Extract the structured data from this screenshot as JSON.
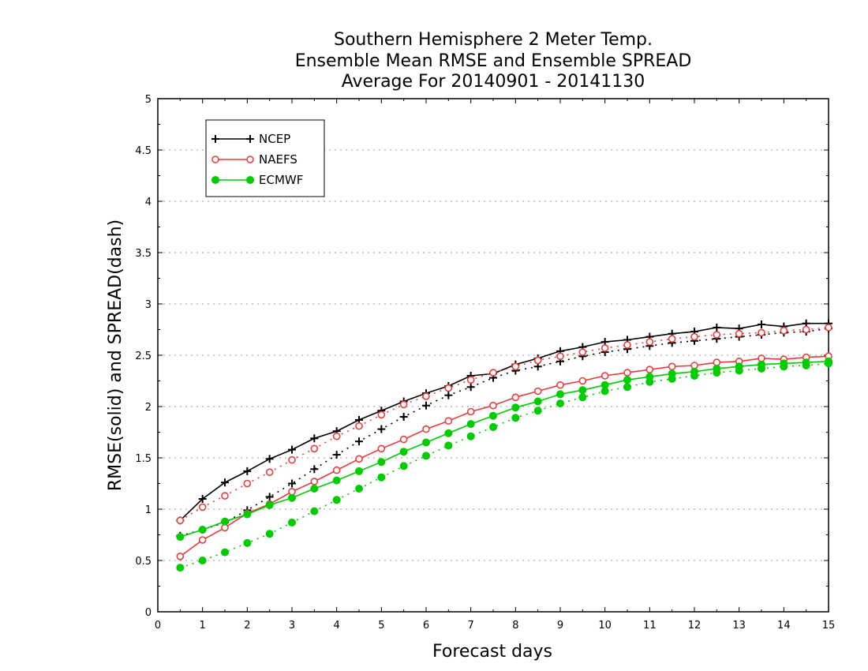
{
  "chart_data": {
    "type": "line",
    "title_lines": [
      "Southern Hemisphere 2 Meter Temp.",
      "Ensemble Mean RMSE and Ensemble SPREAD",
      "Average For 20140901 - 20141130"
    ],
    "xlabel": "Forecast days",
    "ylabel": "RMSE(solid) and SPREAD(dash)",
    "xlim": [
      0,
      15
    ],
    "ylim": [
      0,
      5
    ],
    "x_ticks": [
      "0",
      "1",
      "2",
      "3",
      "4",
      "5",
      "6",
      "7",
      "8",
      "9",
      "10",
      "11",
      "12",
      "13",
      "14",
      "15"
    ],
    "y_ticks": [
      "0",
      "0.5",
      "1",
      "1.5",
      "2",
      "2.5",
      "3",
      "3.5",
      "4",
      "4.5",
      "5"
    ],
    "grid": "horizontal dotted",
    "legend_position": "top-left",
    "x": [
      0.5,
      1,
      1.5,
      2,
      2.5,
      3,
      3.5,
      4,
      4.5,
      5,
      5.5,
      6,
      6.5,
      7,
      7.5,
      8,
      8.5,
      9,
      9.5,
      10,
      10.5,
      11,
      11.5,
      12,
      12.5,
      13,
      13.5,
      14,
      14.5,
      15
    ],
    "series": [
      {
        "name": "NCEP",
        "metric": "RMSE",
        "line": "solid",
        "marker": "plus",
        "color": "#000000",
        "values": [
          0.89,
          1.1,
          1.26,
          1.37,
          1.49,
          1.58,
          1.69,
          1.76,
          1.87,
          1.96,
          2.05,
          2.13,
          2.2,
          2.3,
          2.32,
          2.41,
          2.47,
          2.54,
          2.58,
          2.63,
          2.65,
          2.68,
          2.71,
          2.73,
          2.77,
          2.76,
          2.8,
          2.78,
          2.81,
          2.81
        ]
      },
      {
        "name": "NCEP",
        "metric": "SPREAD",
        "line": "dash",
        "marker": "plus",
        "color": "#000000",
        "values": [
          0.74,
          0.8,
          0.87,
          0.99,
          1.12,
          1.25,
          1.39,
          1.53,
          1.66,
          1.78,
          1.9,
          2.01,
          2.11,
          2.19,
          2.28,
          2.35,
          2.39,
          2.44,
          2.49,
          2.53,
          2.56,
          2.59,
          2.62,
          2.64,
          2.66,
          2.68,
          2.7,
          2.72,
          2.73,
          2.76
        ]
      },
      {
        "name": "NAEFS",
        "metric": "RMSE",
        "line": "solid",
        "marker": "open-circle",
        "color": "#ee3b3b",
        "values": [
          0.54,
          0.7,
          0.82,
          0.96,
          1.05,
          1.17,
          1.27,
          1.38,
          1.49,
          1.59,
          1.68,
          1.78,
          1.86,
          1.95,
          2.01,
          2.09,
          2.15,
          2.21,
          2.25,
          2.3,
          2.33,
          2.36,
          2.39,
          2.4,
          2.43,
          2.44,
          2.47,
          2.46,
          2.48,
          2.49
        ]
      },
      {
        "name": "NAEFS",
        "metric": "SPREAD",
        "line": "dash",
        "marker": "open-circle",
        "color": "#ee3b3b",
        "values": [
          0.89,
          1.02,
          1.13,
          1.25,
          1.36,
          1.48,
          1.59,
          1.71,
          1.81,
          1.92,
          2.02,
          2.1,
          2.18,
          2.26,
          2.33,
          2.39,
          2.45,
          2.49,
          2.53,
          2.57,
          2.6,
          2.63,
          2.66,
          2.68,
          2.7,
          2.71,
          2.72,
          2.74,
          2.75,
          2.77
        ]
      },
      {
        "name": "ECMWF",
        "metric": "RMSE",
        "line": "solid",
        "marker": "filled-circle",
        "color": "#00cc00",
        "values": [
          0.73,
          0.8,
          0.88,
          0.95,
          1.04,
          1.11,
          1.2,
          1.28,
          1.37,
          1.46,
          1.56,
          1.65,
          1.74,
          1.83,
          1.91,
          1.99,
          2.05,
          2.12,
          2.16,
          2.21,
          2.26,
          2.29,
          2.32,
          2.34,
          2.37,
          2.39,
          2.41,
          2.42,
          2.43,
          2.44
        ]
      },
      {
        "name": "ECMWF",
        "metric": "SPREAD",
        "line": "dash",
        "marker": "filled-circle",
        "color": "#00cc00",
        "values": [
          0.43,
          0.5,
          0.58,
          0.67,
          0.76,
          0.87,
          0.98,
          1.09,
          1.2,
          1.31,
          1.42,
          1.52,
          1.62,
          1.71,
          1.8,
          1.89,
          1.96,
          2.03,
          2.09,
          2.15,
          2.19,
          2.24,
          2.27,
          2.3,
          2.33,
          2.35,
          2.37,
          2.39,
          2.4,
          2.42
        ]
      }
    ],
    "legend": [
      {
        "label": "NCEP",
        "marker": "plus",
        "color": "#000000"
      },
      {
        "label": "NAEFS",
        "marker": "open-circle",
        "color": "#ee3b3b"
      },
      {
        "label": "ECMWF",
        "marker": "filled-circle",
        "color": "#00cc00"
      }
    ]
  }
}
